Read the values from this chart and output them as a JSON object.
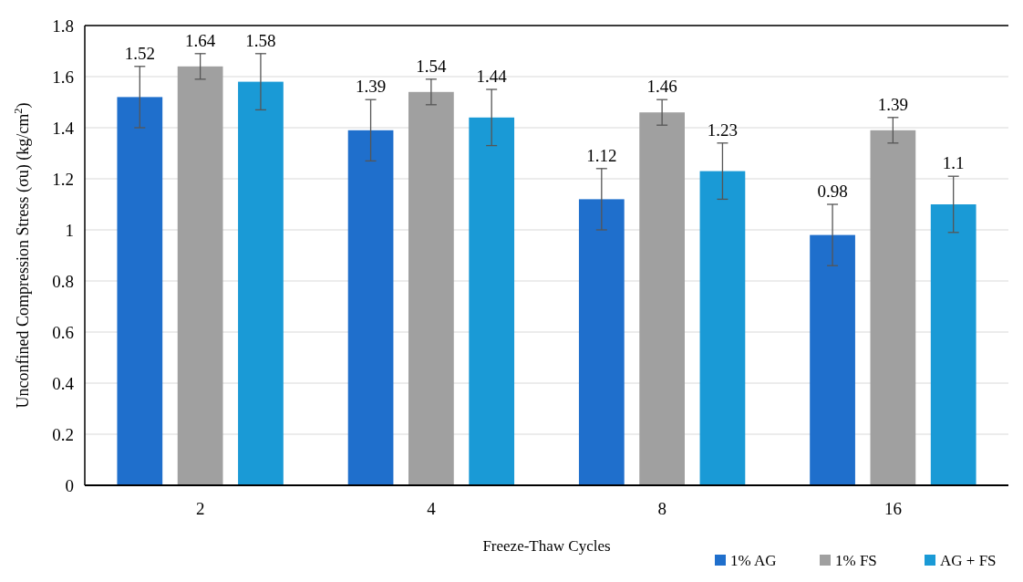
{
  "chart_data": {
    "type": "bar",
    "xlabel": "Freeze-Thaw Cycles",
    "ylabel": "Unconfined Compression Stress (σu) (kg/cm$^{2}$)",
    "categories": [
      "2",
      "4",
      "8",
      "16"
    ],
    "series": [
      {
        "name": "1% AG",
        "color": "#1f6fcc",
        "values": [
          1.52,
          1.39,
          1.12,
          0.98
        ],
        "errors": [
          0.12,
          0.12,
          0.12,
          0.12
        ]
      },
      {
        "name": "1% FS",
        "color": "#a0a0a0",
        "values": [
          1.64,
          1.54,
          1.46,
          1.39
        ],
        "errors": [
          0.05,
          0.05,
          0.05,
          0.05
        ]
      },
      {
        "name": "AG + FS",
        "color": "#1a9ad6",
        "values": [
          1.58,
          1.44,
          1.23,
          1.1
        ],
        "errors": [
          0.11,
          0.11,
          0.11,
          0.11
        ]
      }
    ],
    "ylim": [
      0,
      1.8
    ],
    "yticks": [
      0,
      0.2,
      0.4,
      0.6,
      0.8,
      1,
      1.2,
      1.4,
      1.6,
      1.8
    ],
    "grid": "y",
    "legend": "bottom right",
    "data_labels": true
  }
}
